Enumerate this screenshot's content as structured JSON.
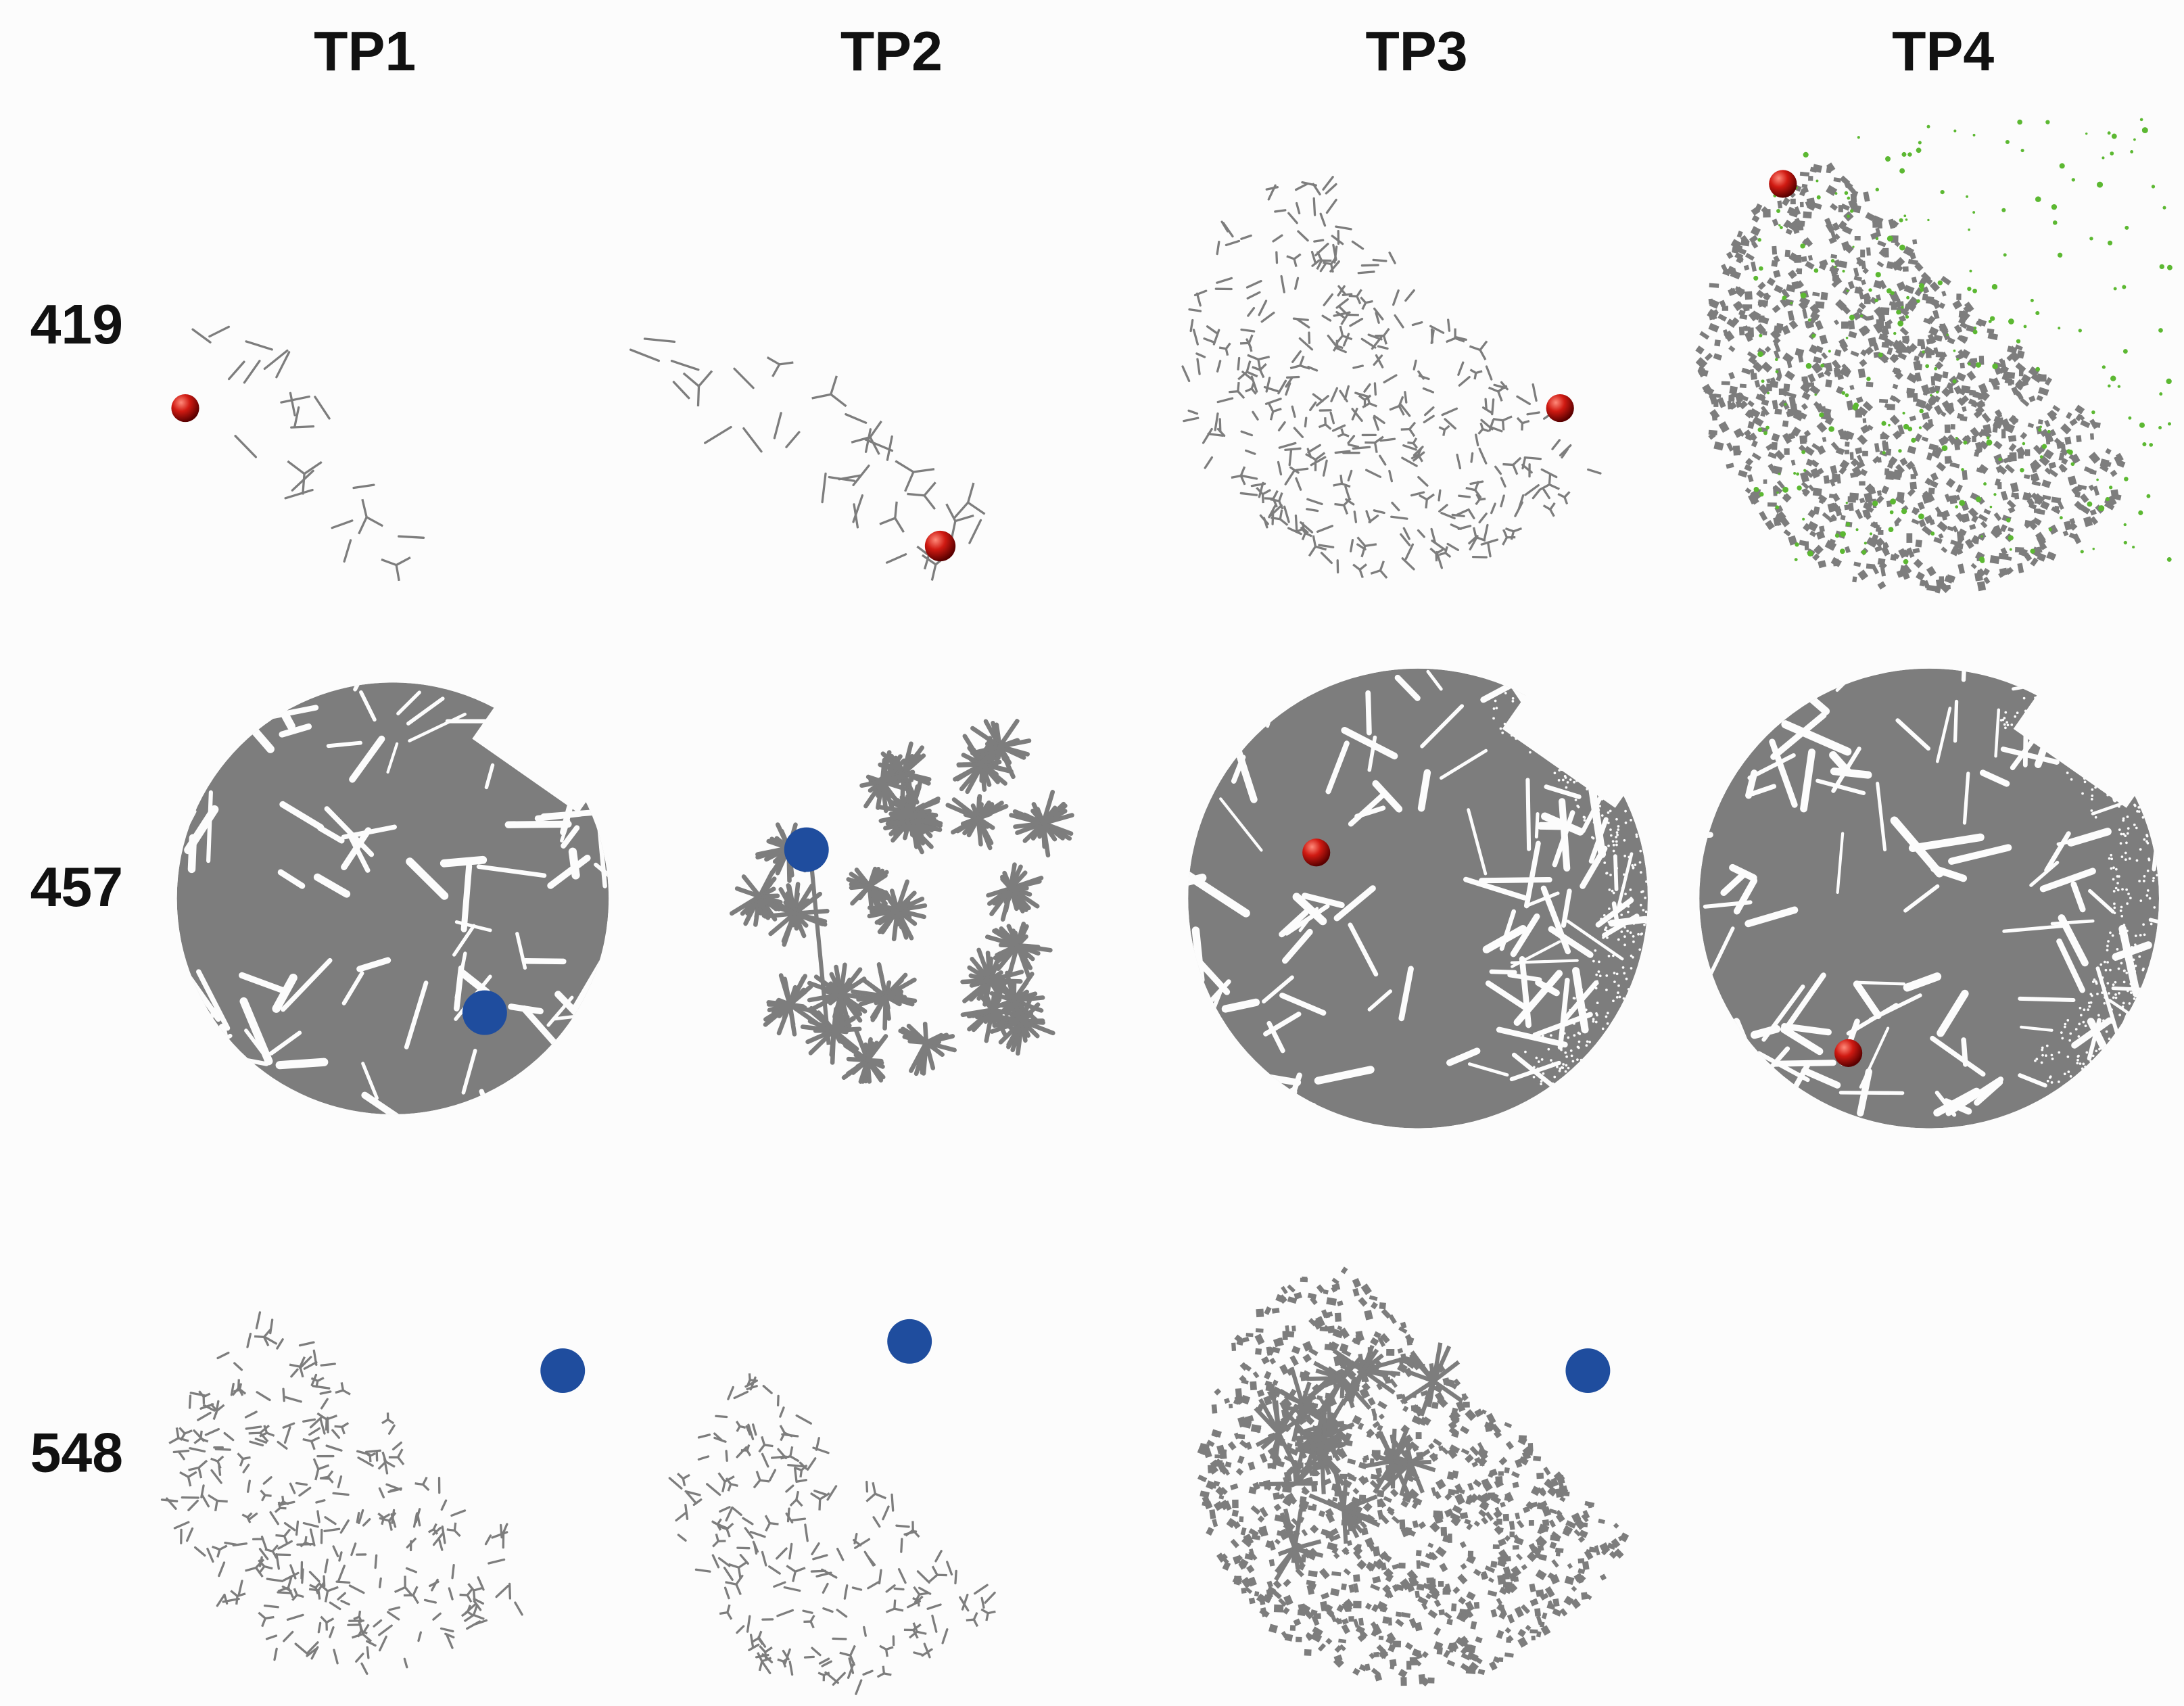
{
  "columns": [
    "TP1",
    "TP2",
    "TP3",
    "TP4"
  ],
  "rows": [
    "419",
    "457",
    "548"
  ]
}
